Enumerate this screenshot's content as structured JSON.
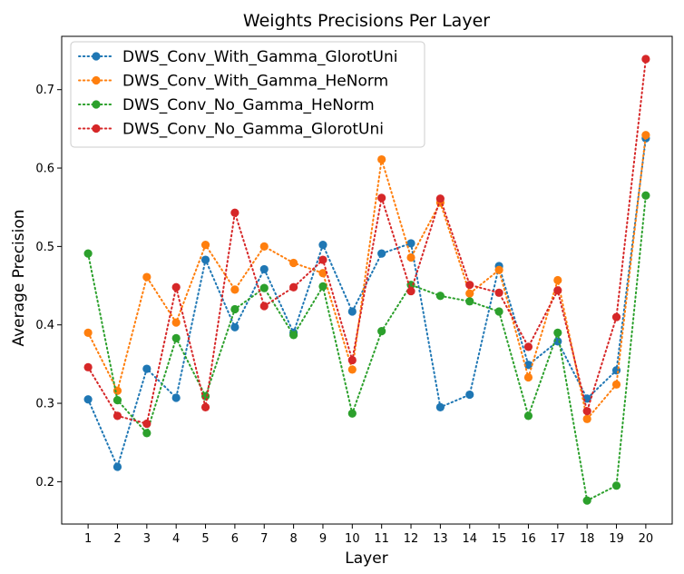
{
  "chart_data": {
    "type": "line",
    "title": "Weights Precisions Per Layer",
    "xlabel": "Layer",
    "ylabel": "Average Precision",
    "x": [
      1,
      2,
      3,
      4,
      5,
      6,
      7,
      8,
      9,
      10,
      11,
      12,
      13,
      14,
      15,
      16,
      17,
      18,
      19,
      20
    ],
    "xlim": [
      0.1,
      20.9
    ],
    "ylim": [
      0.146,
      0.768
    ],
    "yticks": [
      0.2,
      0.3,
      0.4,
      0.5,
      0.6,
      0.7
    ],
    "ytick_labels": [
      "0.2",
      "0.3",
      "0.4",
      "0.5",
      "0.6",
      "0.7"
    ],
    "grid": false,
    "legend_position": "upper-left",
    "series": [
      {
        "name": "DWS_Conv_With_Gamma_GlorotUni",
        "color": "#1f77b4",
        "values": [
          0.305,
          0.219,
          0.344,
          0.307,
          0.483,
          0.397,
          0.471,
          0.39,
          0.502,
          0.417,
          0.491,
          0.504,
          0.295,
          0.311,
          0.475,
          0.349,
          0.379,
          0.306,
          0.342,
          0.638
        ]
      },
      {
        "name": "DWS_Conv_With_Gamma_HeNorm",
        "color": "#ff7f0e",
        "values": [
          0.39,
          0.316,
          0.461,
          0.403,
          0.502,
          0.445,
          0.5,
          0.479,
          0.466,
          0.343,
          0.611,
          0.486,
          0.556,
          0.44,
          0.47,
          0.333,
          0.457,
          0.28,
          0.324,
          0.642
        ]
      },
      {
        "name": "DWS_Conv_No_Gamma_HeNorm",
        "color": "#2ca02c",
        "values": [
          0.491,
          0.304,
          0.262,
          0.383,
          0.309,
          0.42,
          0.447,
          0.387,
          0.449,
          0.287,
          0.392,
          0.451,
          0.437,
          0.43,
          0.417,
          0.284,
          0.39,
          0.176,
          0.195,
          0.565
        ]
      },
      {
        "name": "DWS_Conv_No_Gamma_GlorotUni",
        "color": "#d62728",
        "values": [
          0.346,
          0.284,
          0.274,
          0.448,
          0.295,
          0.543,
          0.424,
          0.448,
          0.483,
          0.355,
          0.562,
          0.443,
          0.561,
          0.451,
          0.441,
          0.372,
          0.444,
          0.29,
          0.41,
          0.739
        ]
      }
    ]
  }
}
